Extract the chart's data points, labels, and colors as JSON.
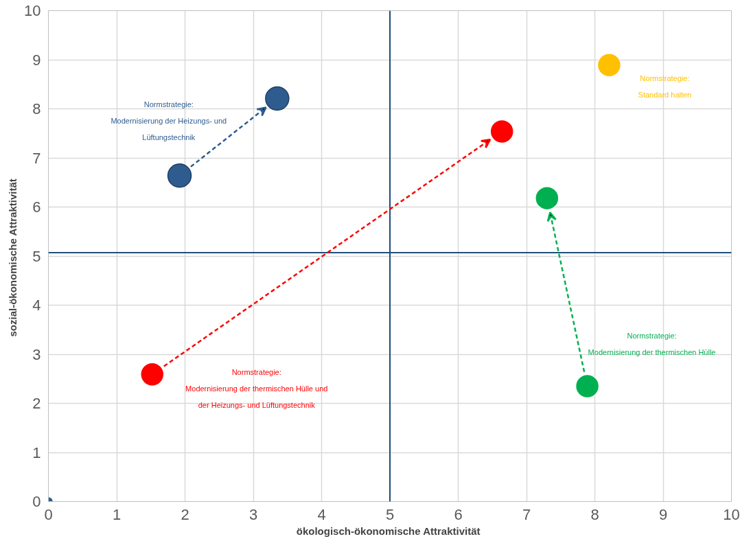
{
  "chart_data": {
    "type": "scatter",
    "xlabel": "ökologisch-ökonomische  Attraktivität",
    "ylabel": "sozial-ökonomische  Attraktivität",
    "xlim": [
      0,
      10
    ],
    "ylim": [
      0,
      10
    ],
    "xticks": [
      0,
      1,
      2,
      3,
      4,
      5,
      6,
      7,
      8,
      9,
      10
    ],
    "yticks": [
      0,
      1,
      2,
      3,
      4,
      5,
      6,
      7,
      8,
      9,
      10
    ],
    "grid": true,
    "marker": "circle",
    "series": [
      {
        "name": "Normstrategie:\nModernisierung der Heizungs- und\nLüftungstechnik",
        "color": "#2f5c8f",
        "x": [
          1.92,
          3.35
        ],
        "values": [
          6.64,
          8.21
        ]
      },
      {
        "name": "Normstrategie:\nModernisierung der thermischen Hülle und\nder Heizungs- und Lüftungstechnik",
        "color": "#ff0000",
        "x": [
          1.52,
          6.64
        ],
        "values": [
          2.59,
          7.54
        ]
      },
      {
        "name": "Normstrategie:\nModernisierung der thermischen Hülle",
        "color": "#00b050",
        "x": [
          7.89,
          7.3
        ],
        "values": [
          2.35,
          6.18
        ]
      },
      {
        "name": "Normstrategie:\nStandard halten",
        "color": "#ffc000",
        "x": [
          8.21
        ],
        "values": [
          8.89
        ]
      },
      {
        "color": "#2f5c8f",
        "x": [
          0
        ],
        "values": [
          0
        ]
      }
    ],
    "ref_lines": [
      {
        "axis": "x",
        "value": 5,
        "color": "#1f4e79"
      },
      {
        "axis": "y",
        "value": 5.07,
        "color": "#1f4e79"
      }
    ]
  }
}
